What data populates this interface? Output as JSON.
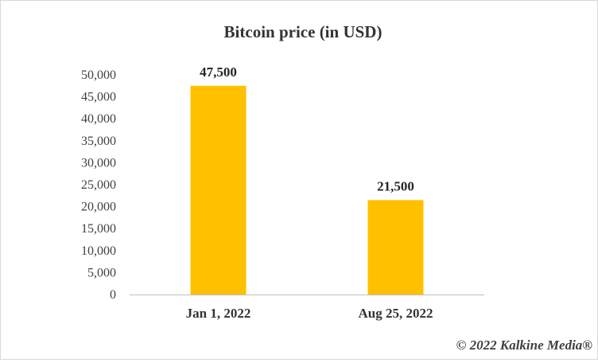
{
  "chart_data": {
    "type": "bar",
    "title": "Bitcoin price (in USD)",
    "xlabel": "",
    "ylabel": "",
    "categories": [
      "Jan 1, 2022",
      "Aug 25, 2022"
    ],
    "values": [
      47500,
      21500
    ],
    "data_labels": [
      "47,500",
      "21,500"
    ],
    "ylim": [
      0,
      50000
    ],
    "yticks": [
      0,
      5000,
      10000,
      15000,
      20000,
      25000,
      30000,
      35000,
      40000,
      45000,
      50000
    ],
    "ytick_labels": [
      "0",
      "5,000",
      "10,000",
      "15,000",
      "20,000",
      "25,000",
      "30,000",
      "35,000",
      "40,000",
      "45,000",
      "50,000"
    ],
    "grid": false,
    "legend": "none",
    "bar_color": "#FFC000"
  },
  "credit": "© 2022 Kalkine Media®"
}
